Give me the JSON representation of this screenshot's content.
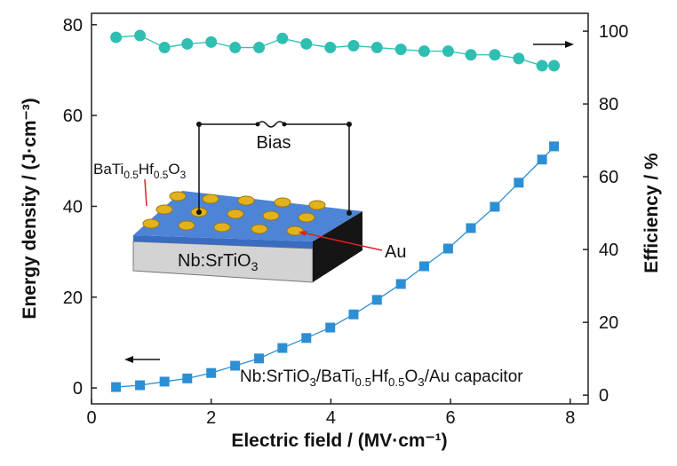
{
  "chart_data": {
    "type": "line",
    "xlabel": "Electric field / (MV·cm⁻¹)",
    "ylabel": "Energy density / (J·cm⁻³)",
    "y2label": "Efficiency / %",
    "x": [
      0.41,
      0.81,
      1.22,
      1.6,
      2.0,
      2.4,
      2.8,
      3.19,
      3.59,
      3.99,
      4.38,
      4.77,
      5.17,
      5.56,
      5.96,
      6.34,
      6.74,
      7.14,
      7.53,
      7.73
    ],
    "series": [
      {
        "name": "Energy density",
        "color": "#2b8fd6",
        "marker": "square",
        "values": [
          0.2,
          0.6,
          1.4,
          2.1,
          3.3,
          4.9,
          6.5,
          8.8,
          11,
          13.3,
          16.2,
          19.4,
          22.9,
          26.8,
          30.7,
          35.2,
          39.9,
          45.2,
          50.3,
          53.2
        ]
      },
      {
        "name": "Efficiency",
        "color": "#2fbfb2",
        "marker": "circle",
        "axis": "y2",
        "values": [
          98.3,
          98.8,
          95.5,
          96.5,
          97,
          95.5,
          95.5,
          98,
          96.5,
          95.5,
          96,
          95.5,
          95,
          94.5,
          94.5,
          93.5,
          93.5,
          92.5,
          90.5,
          90.5
        ]
      }
    ],
    "xlim": [
      0,
      8.3
    ],
    "xticks": [
      0,
      2,
      4,
      6,
      8
    ],
    "ylim": [
      -3.5,
      82.5
    ],
    "yticks": [
      0,
      20,
      40,
      60,
      80
    ],
    "y2lim": [
      -2.4,
      104.9
    ],
    "y2ticks": [
      0,
      20,
      40,
      60,
      80,
      100
    ],
    "annotations": {
      "capacitor": [
        "Nb:SrTiO",
        "3",
        "/BaTi",
        "0.5",
        "Hf",
        "0.5",
        "O",
        "3",
        "/Au capacitor"
      ],
      "film": [
        "BaTi",
        "0.5",
        "Hf",
        "0.5",
        "O",
        "3"
      ],
      "substrate": [
        "Nb:SrTiO",
        "3"
      ],
      "electrode": "Au",
      "bias": "Bias"
    }
  }
}
